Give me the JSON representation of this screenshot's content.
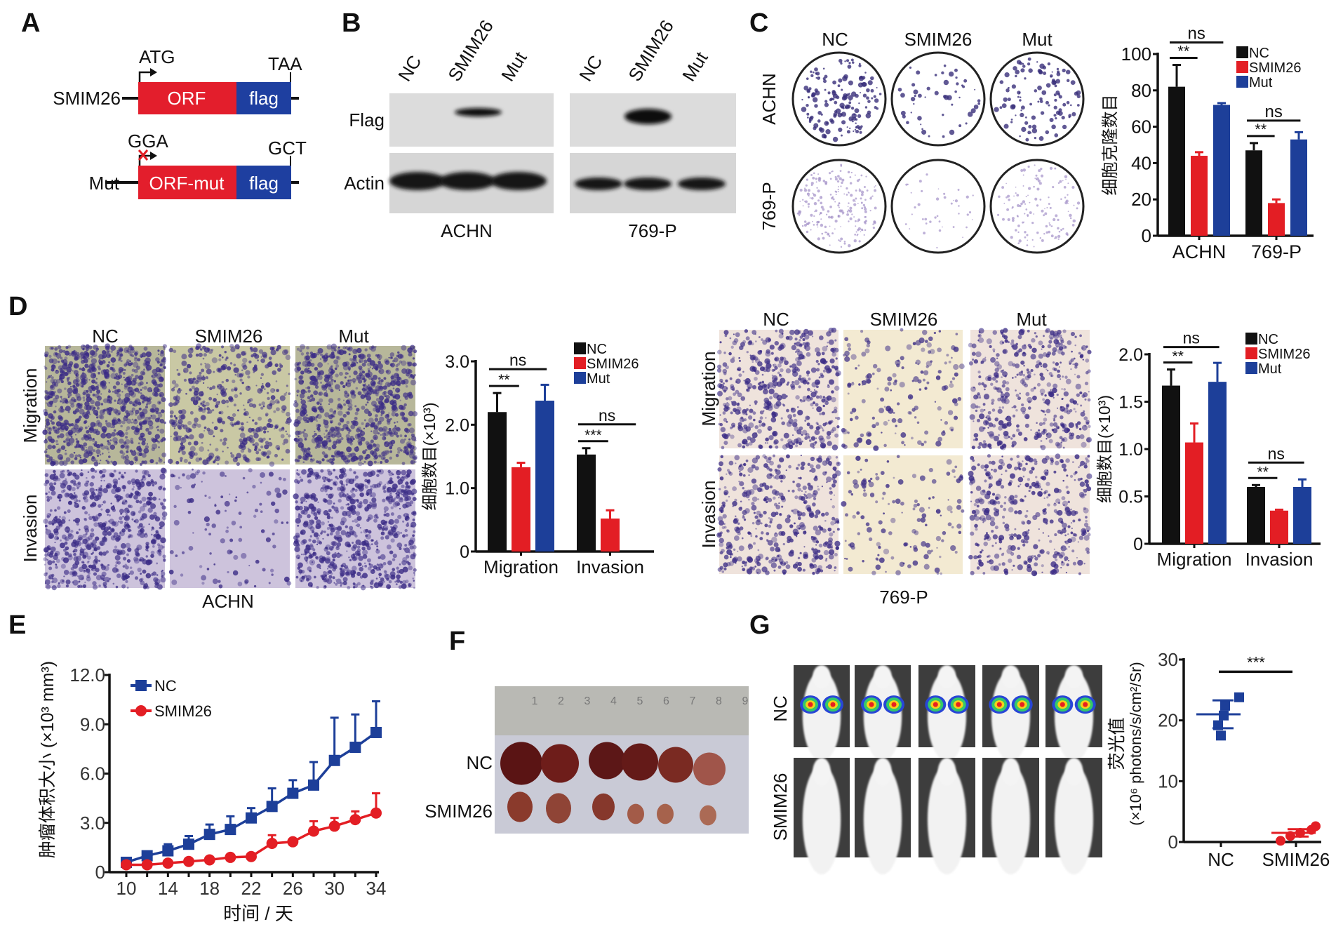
{
  "panel_labels": [
    "A",
    "B",
    "C",
    "D",
    "E",
    "F",
    "G"
  ],
  "colors": {
    "nc": "#111111",
    "smim26": "#e31e24",
    "mut": "#1d3f99",
    "orf": "#e31e2c",
    "flag": "#1e3fa0",
    "line_nc": "#1d3f99",
    "line_smim26": "#e31e24"
  },
  "panel_a": {
    "constructs": [
      {
        "name": "SMIM26",
        "start": "ATG",
        "stop": "TAA",
        "orf": "ORF",
        "tag": "flag"
      },
      {
        "name": "Mut",
        "start": "GGA",
        "stop": "GCT",
        "orf": "ORF-mut",
        "tag": "flag"
      }
    ]
  },
  "panel_b": {
    "lanes": [
      "NC",
      "SMIM26",
      "Mut"
    ],
    "rows": [
      "Flag",
      "Actin"
    ],
    "cell_lines": [
      "ACHN",
      "769-P"
    ]
  },
  "panel_c": {
    "columns": [
      "NC",
      "SMIM26",
      "Mut"
    ],
    "rows": [
      "ACHN",
      "769-P"
    ]
  },
  "panel_d": {
    "columns": [
      "NC",
      "SMIM26",
      "Mut"
    ],
    "rows": [
      "Migration",
      "Invasion"
    ],
    "cell_lines": [
      "ACHN",
      "769-P"
    ]
  },
  "panel_f": {
    "rows": [
      "NC",
      "SMIM26"
    ],
    "ruler": [
      "1",
      "2",
      "3",
      "4",
      "5",
      "6",
      "7",
      "8",
      "9"
    ]
  },
  "panel_g": {
    "rows": [
      "NC",
      "SMIM26"
    ]
  },
  "chart_data": [
    {
      "panel": "C",
      "type": "bar",
      "categories": [
        "ACHN",
        "769-P"
      ],
      "series": [
        {
          "name": "NC",
          "values": [
            82,
            47
          ],
          "errors": [
            12,
            4
          ]
        },
        {
          "name": "SMIM26",
          "values": [
            44,
            18
          ],
          "errors": [
            2,
            2
          ]
        },
        {
          "name": "Mut",
          "values": [
            72,
            53
          ],
          "errors": [
            1,
            4
          ]
        }
      ],
      "ylabel": "细胞克隆数目",
      "ylim": [
        0,
        100
      ],
      "yticks": [
        "0",
        "20",
        "40",
        "60",
        "80",
        "100"
      ],
      "legend": "top-right",
      "significance": [
        {
          "category": 0,
          "pair": [
            0,
            1
          ],
          "label": "**"
        },
        {
          "category": 0,
          "pair": [
            0,
            2
          ],
          "label": "ns"
        },
        {
          "category": 1,
          "pair": [
            0,
            1
          ],
          "label": "**"
        },
        {
          "category": 1,
          "pair": [
            0,
            2
          ],
          "label": "ns"
        }
      ]
    },
    {
      "panel": "D",
      "type": "bar",
      "cell_line": "ACHN",
      "categories": [
        "Migration",
        "Invasion"
      ],
      "series": [
        {
          "name": "NC",
          "values": [
            2.2,
            1.53
          ],
          "errors": [
            0.3,
            0.1
          ]
        },
        {
          "name": "SMIM26",
          "values": [
            1.33,
            0.52
          ],
          "errors": [
            0.07,
            0.13
          ]
        },
        {
          "name": "Mut",
          "values": [
            2.38,
            null
          ],
          "errors": [
            0.25,
            null
          ]
        }
      ],
      "ylabel": "细胞数目(×10³)",
      "ylim": [
        0,
        3
      ],
      "yticks": [
        "0",
        "1.0",
        "2.0",
        "3.0"
      ],
      "legend": "top-right",
      "significance": [
        {
          "category": 0,
          "pair": [
            0,
            1
          ],
          "label": "**"
        },
        {
          "category": 0,
          "pair": [
            0,
            2
          ],
          "label": "ns"
        },
        {
          "category": 1,
          "pair": [
            0,
            1
          ],
          "label": "***"
        },
        {
          "category": 1,
          "pair": [
            0,
            2
          ],
          "label": "ns"
        }
      ]
    },
    {
      "panel": "D",
      "type": "bar",
      "cell_line": "769-P",
      "categories": [
        "Migration",
        "Invasion"
      ],
      "series": [
        {
          "name": "NC",
          "values": [
            1.67,
            0.6
          ],
          "errors": [
            0.17,
            0.02
          ]
        },
        {
          "name": "SMIM26",
          "values": [
            1.07,
            0.35
          ],
          "errors": [
            0.2,
            0.01
          ]
        },
        {
          "name": "Mut",
          "values": [
            1.71,
            0.6
          ],
          "errors": [
            0.2,
            0.08
          ]
        }
      ],
      "ylabel": "细胞数目(×10³)",
      "ylim": [
        0,
        2
      ],
      "yticks": [
        "0",
        "0.5",
        "1.0",
        "1.5",
        "2.0"
      ],
      "legend": "top-right",
      "significance": [
        {
          "category": 0,
          "pair": [
            0,
            1
          ],
          "label": "**"
        },
        {
          "category": 0,
          "pair": [
            0,
            2
          ],
          "label": "ns"
        },
        {
          "category": 1,
          "pair": [
            0,
            1
          ],
          "label": "**"
        },
        {
          "category": 1,
          "pair": [
            0,
            2
          ],
          "label": "ns"
        }
      ]
    },
    {
      "panel": "E",
      "type": "line",
      "x": [
        10,
        12,
        14,
        16,
        18,
        20,
        22,
        24,
        26,
        28,
        30,
        32,
        34
      ],
      "series": [
        {
          "name": "NC",
          "values": [
            0.6,
            1.0,
            1.3,
            1.7,
            2.3,
            2.6,
            3.3,
            4.0,
            4.8,
            5.3,
            6.8,
            7.6,
            8.5
          ],
          "errors": [
            0.1,
            0.2,
            0.4,
            0.5,
            0.6,
            0.8,
            0.6,
            1.1,
            0.8,
            1.4,
            2.6,
            2.0,
            1.9
          ]
        },
        {
          "name": "SMIM26",
          "values": [
            0.45,
            0.45,
            0.55,
            0.65,
            0.75,
            0.9,
            0.95,
            1.75,
            1.85,
            2.5,
            2.8,
            3.2,
            3.6
          ],
          "errors": [
            0.05,
            0.05,
            0.05,
            0.05,
            0.1,
            0.1,
            0.1,
            0.5,
            0.1,
            0.6,
            0.5,
            0.5,
            1.2
          ]
        }
      ],
      "xlabel": "时间 / 天",
      "ylabel": "肿瘤体积大小 (×10³ mm³)",
      "xlim": [
        10,
        34
      ],
      "ylim": [
        0,
        12
      ],
      "xticks": [
        "10",
        "14",
        "18",
        "22",
        "26",
        "30",
        "34"
      ],
      "yticks": [
        "0",
        "3.0",
        "6.0",
        "9.0",
        "12.0"
      ],
      "legend": "top-left"
    },
    {
      "panel": "G",
      "type": "scatter",
      "categories": [
        "NC",
        "SMIM26"
      ],
      "series": [
        {
          "name": "NC",
          "values": [
            17.5,
            19.2,
            20.8,
            22.4,
            23.8
          ],
          "mean": 21,
          "sd": 2.3
        },
        {
          "name": "SMIM26",
          "values": [
            0.2,
            1.0,
            1.5,
            2.0,
            2.6
          ],
          "mean": 1.5,
          "sd": 0.6
        }
      ],
      "ylabel": [
        "荧光值",
        "(×10⁶ photons/s/cm²/Sr)"
      ],
      "ylim": [
        0,
        30
      ],
      "yticks": [
        "0",
        "10",
        "20",
        "30"
      ],
      "significance": [
        {
          "pair": [
            0,
            1
          ],
          "label": "***"
        }
      ]
    }
  ]
}
